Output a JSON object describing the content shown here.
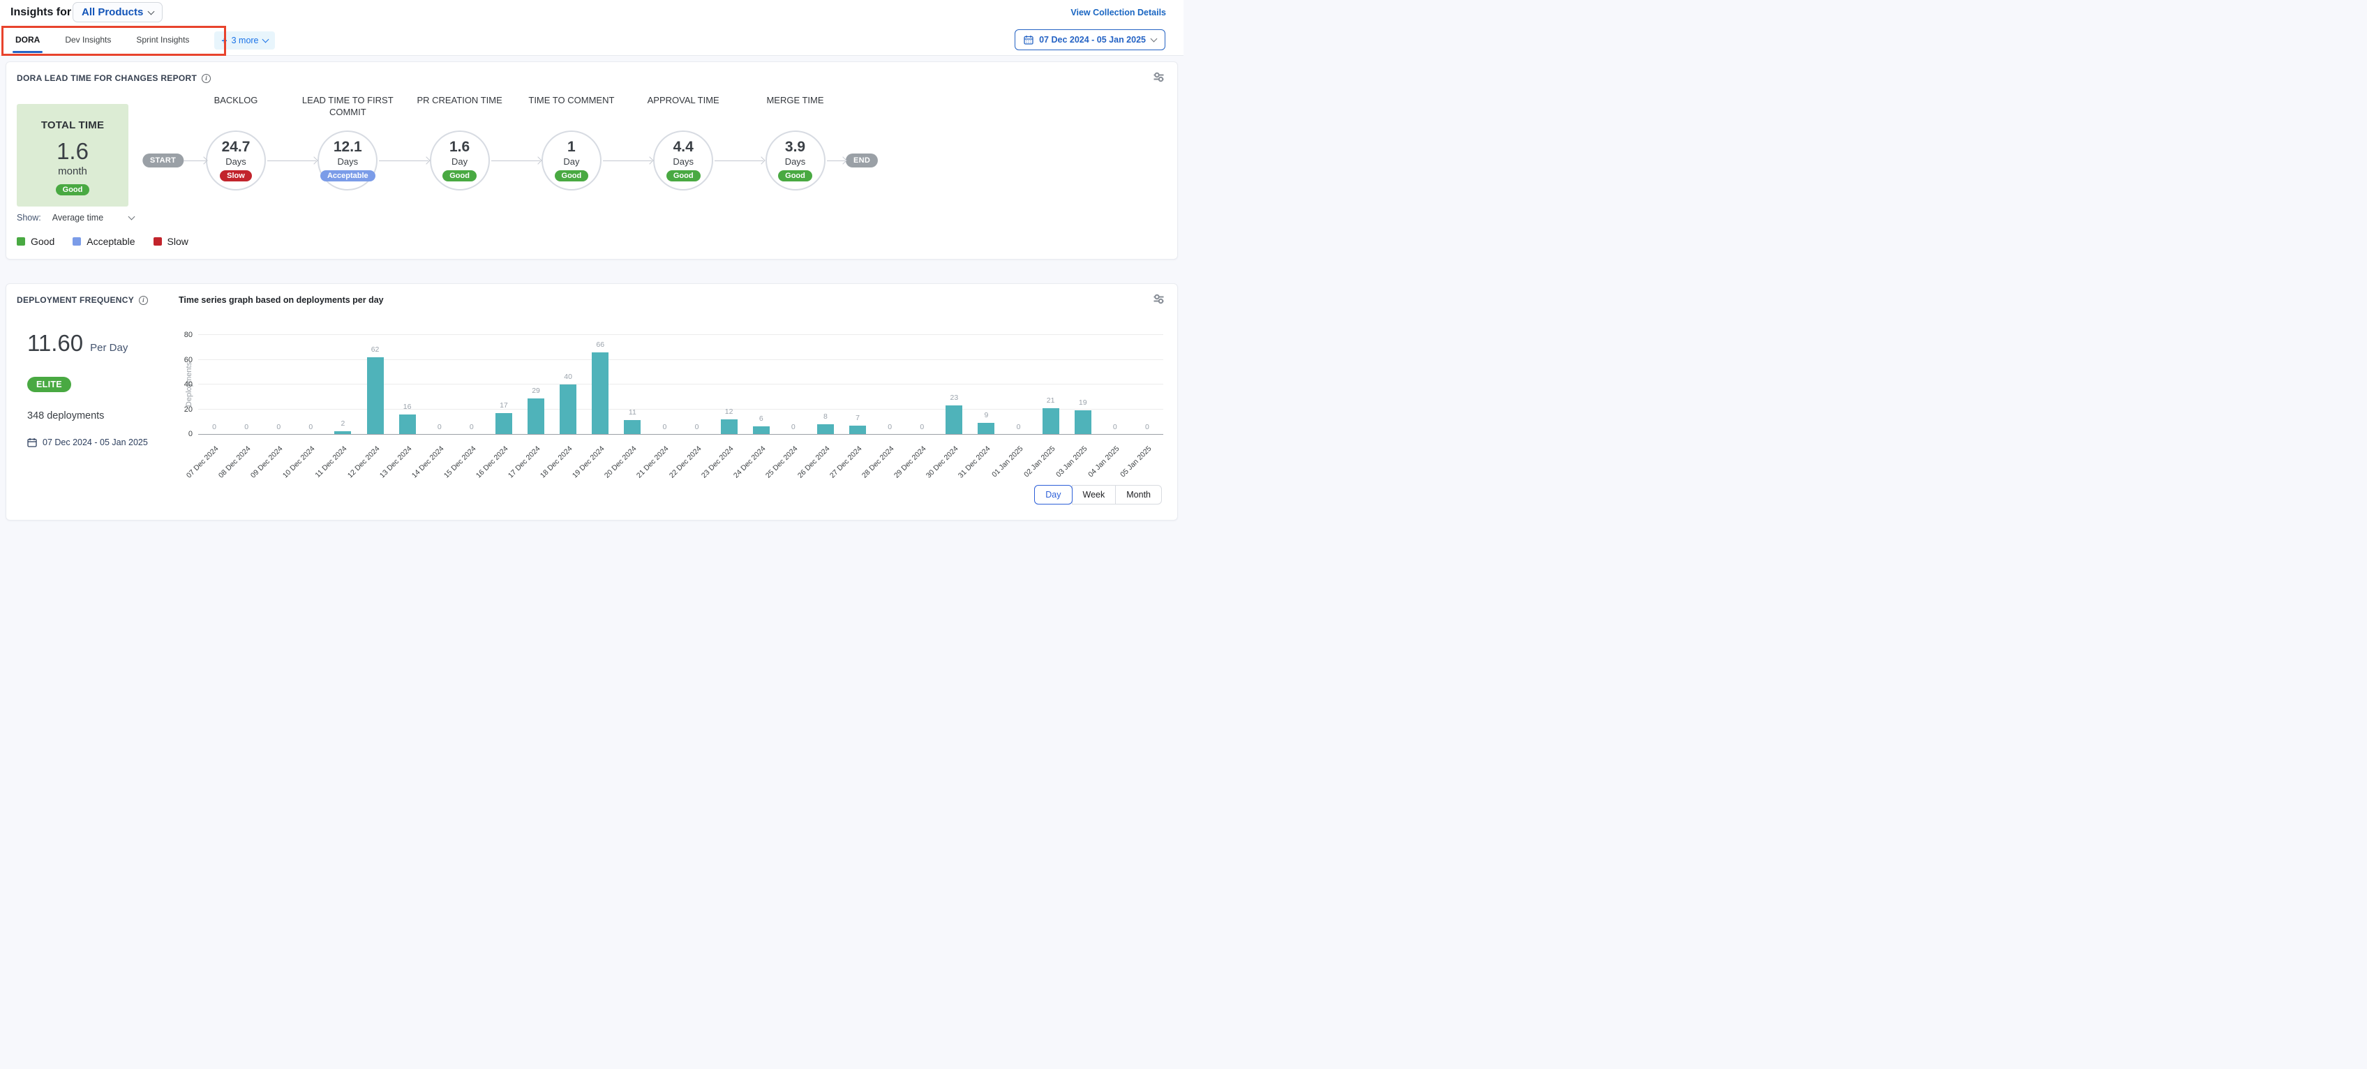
{
  "header": {
    "title": "Insights for",
    "product_selector_value": "All Products",
    "view_collection_details": "View Collection Details"
  },
  "tab_bar": {
    "tabs": [
      {
        "label": "DORA",
        "active": true
      },
      {
        "label": "Dev Insights",
        "active": false
      },
      {
        "label": "Sprint Insights",
        "active": false
      }
    ],
    "more_label": "3 more",
    "date_range": "07 Dec 2024 - 05 Jan 2025"
  },
  "status_colors": {
    "Good": "#49a942",
    "Acceptable": "#7b9ce8",
    "Slow": "#c2242c"
  },
  "lead_time_card": {
    "title": "DORA LEAD TIME FOR CHANGES REPORT",
    "total": {
      "label": "TOTAL TIME",
      "value": "1.6",
      "unit": "month",
      "status": "Good"
    },
    "flow": {
      "start_label": "START",
      "end_label": "END",
      "stages": [
        {
          "name": "BACKLOG",
          "value": "24.7",
          "unit": "Days",
          "status": "Slow"
        },
        {
          "name": "LEAD TIME TO FIRST COMMIT",
          "value": "12.1",
          "unit": "Days",
          "status": "Acceptable"
        },
        {
          "name": "PR CREATION TIME",
          "value": "1.6",
          "unit": "Day",
          "status": "Good"
        },
        {
          "name": "TIME TO COMMENT",
          "value": "1",
          "unit": "Day",
          "status": "Good"
        },
        {
          "name": "APPROVAL TIME",
          "value": "4.4",
          "unit": "Days",
          "status": "Good"
        },
        {
          "name": "MERGE TIME",
          "value": "3.9",
          "unit": "Days",
          "status": "Good"
        }
      ]
    },
    "show_label": "Show:",
    "show_value": "Average time",
    "legend": [
      "Good",
      "Acceptable",
      "Slow"
    ]
  },
  "deployment_card": {
    "title": "DEPLOYMENT FREQUENCY",
    "rate_value": "11.60",
    "rate_unit": "Per Day",
    "tier_badge": "ELITE",
    "deployments_total": "348 deployments",
    "date_range": "07 Dec 2024 - 05 Jan 2025",
    "granularity": {
      "options": [
        "Day",
        "Week",
        "Month"
      ],
      "active": "Day"
    }
  },
  "chart_data": {
    "type": "bar",
    "title": "Time series graph based on deployments per day",
    "xlabel": "",
    "ylabel": "Deployments",
    "ylim": [
      0,
      80
    ],
    "yticks": [
      0,
      20,
      40,
      60,
      80
    ],
    "grid": true,
    "legend_position": "none",
    "bar_color": "#4fb3ba",
    "categories": [
      "07 Dec 2024",
      "08 Dec 2024",
      "09 Dec 2024",
      "10 Dec 2024",
      "11 Dec 2024",
      "12 Dec 2024",
      "13 Dec 2024",
      "14 Dec 2024",
      "15 Dec 2024",
      "16 Dec 2024",
      "17 Dec 2024",
      "18 Dec 2024",
      "19 Dec 2024",
      "20 Dec 2024",
      "21 Dec 2024",
      "22 Dec 2024",
      "23 Dec 2024",
      "24 Dec 2024",
      "25 Dec 2024",
      "26 Dec 2024",
      "27 Dec 2024",
      "28 Dec 2024",
      "29 Dec 2024",
      "30 Dec 2024",
      "31 Dec 2024",
      "01 Jan 2025",
      "02 Jan 2025",
      "03 Jan 2025",
      "04 Jan 2025",
      "05 Jan 2025"
    ],
    "values": [
      0,
      0,
      0,
      0,
      2,
      62,
      16,
      0,
      0,
      17,
      29,
      40,
      66,
      11,
      0,
      0,
      12,
      6,
      0,
      8,
      7,
      0,
      0,
      23,
      9,
      0,
      21,
      19,
      0,
      0
    ]
  }
}
